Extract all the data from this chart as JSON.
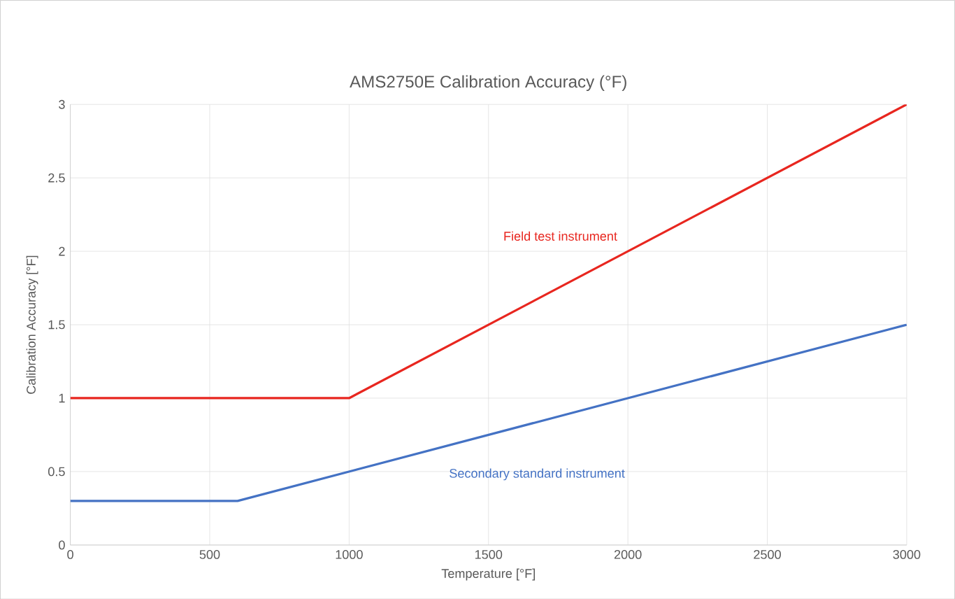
{
  "chart_data": {
    "type": "line",
    "title": "AMS2750E Calibration Accuracy (°F)",
    "xlabel": "Temperature [°F]",
    "ylabel": "Calibration Accuracy [°F]",
    "series": [
      {
        "name": "Field test instrument",
        "color": "#e8261f",
        "x": [
          0,
          1000,
          3000
        ],
        "values": [
          1,
          1,
          3
        ]
      },
      {
        "name": "Secondary standard instrument",
        "color": "#4472c4",
        "x": [
          0,
          600,
          3000
        ],
        "values": [
          0.3,
          0.3,
          1.5
        ]
      }
    ],
    "xlim": [
      0,
      3000
    ],
    "ylim": [
      0,
      3
    ],
    "xticks": [
      0,
      500,
      1000,
      1500,
      2000,
      2500,
      3000
    ],
    "yticks": [
      0,
      0.5,
      1,
      1.5,
      2,
      2.5,
      3
    ],
    "grid": true,
    "legend": false,
    "marker": "none",
    "line_style": "solid"
  }
}
